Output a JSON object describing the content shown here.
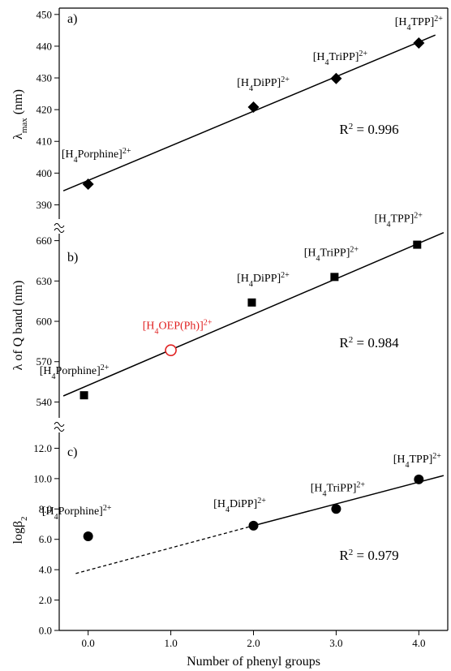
{
  "chart_data": {
    "type": "scatter",
    "x_axis": {
      "label": "Number of phenyl groups",
      "range": [
        -0.35,
        4.35
      ],
      "ticks": [
        0,
        1,
        2,
        3,
        4
      ],
      "tick_labels": [
        "0.0",
        "1.0",
        "2.0",
        "3.0",
        "4.0"
      ]
    },
    "panels": [
      {
        "id": "a",
        "label": "a)",
        "ylabel_main": "λ",
        "ylabel_sub": "max",
        "ylabel_rest": " (nm)",
        "y_range": [
          385,
          452
        ],
        "y_ticks": [
          390,
          400,
          410,
          420,
          430,
          440,
          450
        ],
        "y_tick_labels": [
          "390",
          "400",
          "410",
          "420",
          "430",
          "440",
          "450"
        ],
        "axis_break_bottom": false,
        "marker": "diamond",
        "points": [
          {
            "x": 0,
            "y": 396.5,
            "label_pre": "[H",
            "label_sub": "4",
            "label_post": "Porphine]",
            "label_sup": "2+"
          },
          {
            "x": 2,
            "y": 420.8,
            "label_pre": "[H",
            "label_sub": "4",
            "label_post": "DiPP]",
            "label_sup": "2+"
          },
          {
            "x": 3,
            "y": 429.8,
            "label_pre": "[H",
            "label_sub": "4",
            "label_post": "TriPP]",
            "label_sup": "2+"
          },
          {
            "x": 4,
            "y": 441.0,
            "label_pre": "[H",
            "label_sub": "4",
            "label_post": "TPP]",
            "label_sup": "2+"
          }
        ],
        "fit_line": {
          "x": [
            -0.3,
            4.2
          ],
          "y": [
            394.4,
            443.5
          ],
          "style": "solid"
        },
        "r2_text": "R",
        "r2_sup": "2",
        "r2_value": " = 0.996"
      },
      {
        "id": "b",
        "label": "b)",
        "ylabel_main": "λ of Q band (nm)",
        "y_range": [
          527,
          667
        ],
        "y_ticks": [
          540,
          570,
          600,
          630,
          660
        ],
        "y_tick_labels": [
          "540",
          "570",
          "600",
          "630",
          "660"
        ],
        "marker": "square",
        "points": [
          {
            "x": -0.05,
            "y": 545,
            "label_pre": "[H",
            "label_sub": "4",
            "label_post": "Porphine]",
            "label_sup": "2+"
          },
          {
            "x": 1.98,
            "y": 614,
            "label_pre": "[H",
            "label_sub": "4",
            "label_post": "DiPP]",
            "label_sup": "2+"
          },
          {
            "x": 2.98,
            "y": 633,
            "label_pre": "[H",
            "label_sub": "4",
            "label_post": "TriPP]",
            "label_sup": "2+"
          },
          {
            "x": 3.98,
            "y": 657,
            "label_pre": "[H",
            "label_sub": "4",
            "label_post": "TPP]",
            "label_sup": "2+"
          }
        ],
        "highlight_point": {
          "x": 1.0,
          "y": 578.5,
          "label_pre": "[H",
          "label_sub": "4",
          "label_post": "OEP(Ph)]",
          "label_sup": "2+",
          "color": "#e02020"
        },
        "fit_line": {
          "x": [
            -0.3,
            4.3
          ],
          "y": [
            544.5,
            666
          ],
          "style": "solid"
        },
        "r2_text": "R",
        "r2_sup": "2",
        "r2_value": " = 0.984"
      },
      {
        "id": "c",
        "label": "c)",
        "ylabel_main": "logβ",
        "ylabel_sub": "2",
        "y_range": [
          0,
          13.2
        ],
        "y_ticks": [
          0,
          2,
          4,
          6,
          8,
          10,
          12
        ],
        "y_tick_labels": [
          "0.0",
          "2.0",
          "4.0",
          "6.0",
          "8.0",
          "10.0",
          "12.0"
        ],
        "marker": "circle",
        "points": [
          {
            "x": 0.0,
            "y": 6.2,
            "label_pre": "[H",
            "label_sub": "4",
            "label_post": "Porphine]",
            "label_sup": "2+"
          },
          {
            "x": 2.0,
            "y": 6.9,
            "label_pre": "[H",
            "label_sub": "4",
            "label_post": "DiPP]",
            "label_sup": "2+"
          },
          {
            "x": 3.0,
            "y": 8.0,
            "label_pre": "[H",
            "label_sub": "4",
            "label_post": "TriPP]",
            "label_sup": "2+"
          },
          {
            "x": 4.0,
            "y": 9.95,
            "label_pre": "[H",
            "label_sub": "4",
            "label_post": "TPP]",
            "label_sup": "2+"
          }
        ],
        "fit_line_solid": {
          "x": [
            2.0,
            4.3
          ],
          "y": [
            6.9,
            10.2
          ]
        },
        "fit_line_dashed": {
          "x": [
            -0.15,
            2.0
          ],
          "y": [
            3.75,
            6.9
          ]
        },
        "r2_text": "R",
        "r2_sup": "2",
        "r2_value": " = 0.979"
      }
    ],
    "colors": {
      "axis": "#000000",
      "marker": "#000000",
      "highlight": "#e02020"
    }
  }
}
